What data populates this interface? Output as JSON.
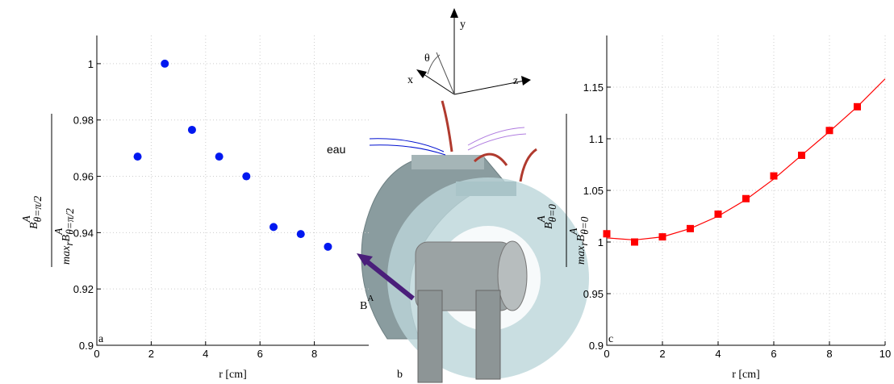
{
  "chart_data": [
    {
      "type": "scatter",
      "panel": "a",
      "xlabel": "r [cm]",
      "ylabel": {
        "numerator": {
          "base": "B",
          "sup": "A",
          "sub": "θ=π/2"
        },
        "denominator": {
          "prefix": "max",
          "prefix_sub": "r",
          "base": "B",
          "sup": "A",
          "sub": "θ=π/2"
        }
      },
      "x": [
        1.5,
        2.5,
        3.5,
        4.5,
        5.5,
        6.5,
        7.5,
        8.5
      ],
      "values": [
        0.967,
        1.0,
        0.9765,
        0.967,
        0.96,
        0.942,
        0.9395,
        0.935
      ],
      "color": "#0018f0",
      "xlim": [
        0,
        10
      ],
      "xticks": [
        0,
        2,
        4,
        6,
        8
      ],
      "ylim": [
        0.9,
        1.01
      ],
      "yticks": [
        0.9,
        0.92,
        0.94,
        0.96,
        0.98,
        1
      ],
      "grid": true
    },
    {
      "type": "line",
      "panel": "c",
      "xlabel": "r [cm]",
      "ylabel": {
        "numerator": {
          "base": "B",
          "sup": "A",
          "sub": "θ=0"
        },
        "denominator": {
          "prefix": "max",
          "prefix_sub": "r",
          "base": "B",
          "sup": "A",
          "sub": "θ=0"
        }
      },
      "series": [
        {
          "style": "markers",
          "color": "#ff0000",
          "x": [
            0,
            1,
            2,
            3,
            4,
            5,
            6,
            7,
            8,
            9
          ],
          "values": [
            1.008,
            1.0,
            1.005,
            1.013,
            1.027,
            1.042,
            1.064,
            1.084,
            1.108,
            1.131
          ]
        },
        {
          "style": "line",
          "color": "#ff0000",
          "x": [
            0,
            1,
            2,
            3,
            4,
            5,
            6,
            7,
            8,
            9,
            10
          ],
          "values": [
            1.004,
            1.002,
            1.005,
            1.013,
            1.025,
            1.041,
            1.061,
            1.084,
            1.107,
            1.131,
            1.158
          ]
        }
      ],
      "xlim": [
        0,
        10
      ],
      "xticks": [
        0,
        2,
        4,
        6,
        8,
        10
      ],
      "ylim": [
        0.9,
        1.2
      ],
      "yticks": [
        0.9,
        0.95,
        1,
        1.05,
        1.1,
        1.15
      ],
      "grid": true
    }
  ],
  "diagram": {
    "panel": "b",
    "axis_labels": {
      "x": "x",
      "y": "y",
      "z": "z",
      "theta": "θ"
    },
    "water_label": "eau",
    "field_label": {
      "base": "B",
      "sup": "A"
    }
  }
}
